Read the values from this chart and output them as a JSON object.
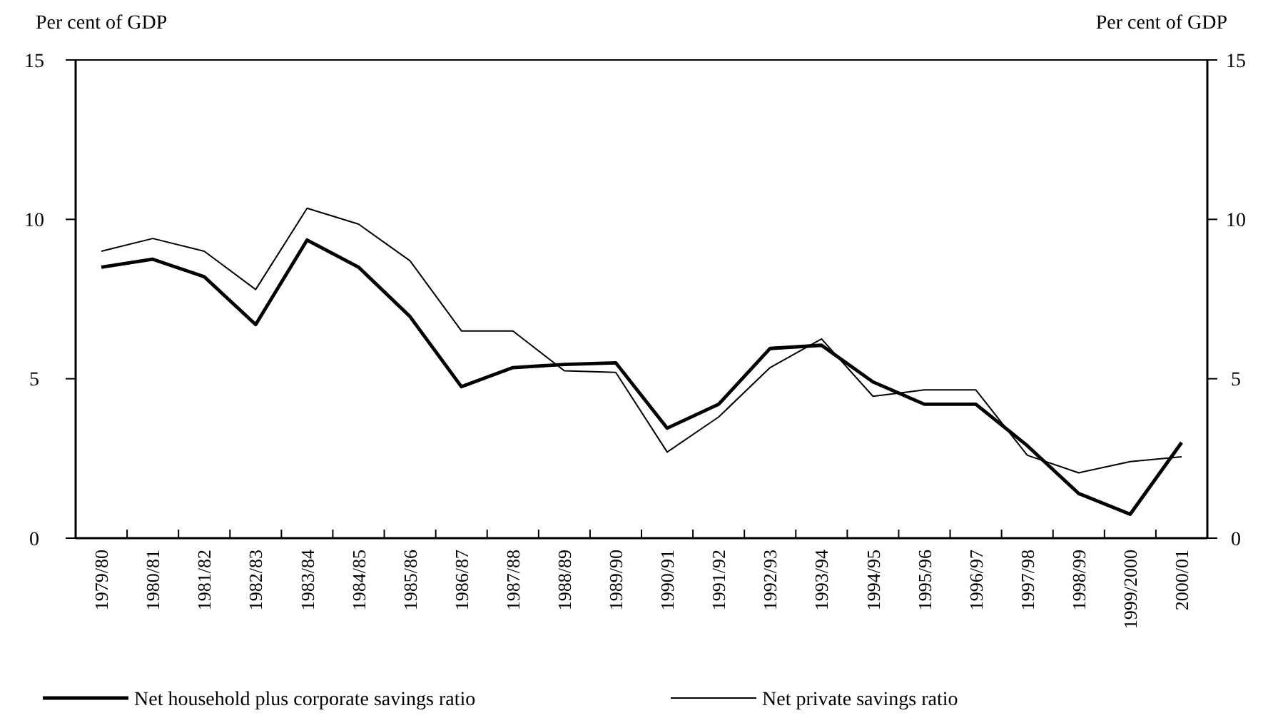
{
  "chart_data": {
    "type": "line",
    "ylabel": "Per cent of GDP",
    "y2label": "Per cent of GDP",
    "categories": [
      "1979/80",
      "1980/81",
      "1981/82",
      "1982/83",
      "1983/84",
      "1984/85",
      "1985/86",
      "1986/87",
      "1987/88",
      "1988/89",
      "1989/90",
      "1990/91",
      "1991/92",
      "1992/93",
      "1993/94",
      "1994/95",
      "1995/96",
      "1996/97",
      "1997/98",
      "1998/99",
      "1999/2000",
      "2000/01"
    ],
    "series": [
      {
        "name": "Net household plus corporate savings ratio",
        "color": "#000000",
        "values": [
          8.5,
          8.75,
          8.2,
          6.7,
          9.35,
          8.5,
          6.95,
          4.75,
          5.35,
          5.45,
          5.5,
          3.45,
          4.2,
          5.95,
          6.05,
          4.9,
          4.2,
          4.2,
          2.9,
          1.4,
          0.75,
          3.0
        ]
      },
      {
        "name": "Net private savings ratio",
        "color": "#000000",
        "values": [
          9.0,
          9.4,
          9.0,
          7.8,
          10.35,
          9.85,
          8.7,
          6.5,
          6.5,
          5.25,
          5.2,
          2.7,
          3.8,
          5.35,
          6.25,
          4.45,
          4.65,
          4.65,
          2.6,
          2.05,
          2.4,
          2.55
        ]
      }
    ],
    "ylim": [
      0,
      15
    ],
    "yticks": [
      0,
      5,
      10,
      15
    ],
    "y2lim": [
      0,
      15
    ],
    "y2ticks": [
      0,
      5,
      10,
      15
    ],
    "grid": false,
    "legend": "bottom"
  }
}
